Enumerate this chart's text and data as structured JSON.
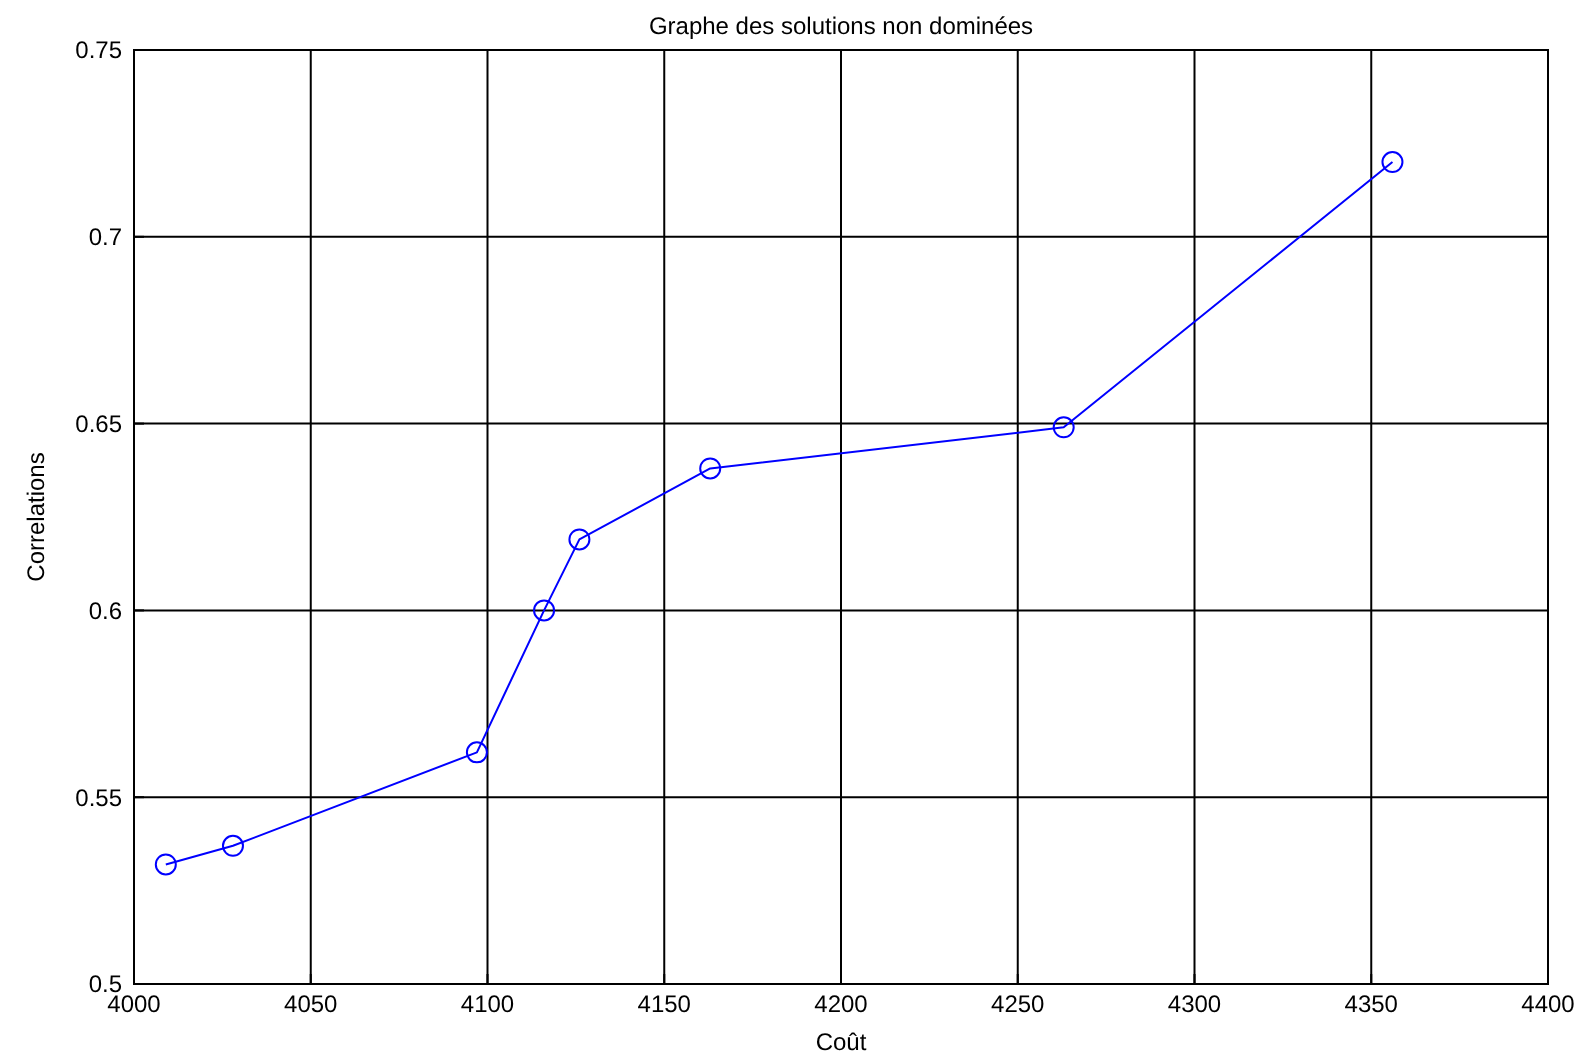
{
  "chart_data": {
    "type": "line",
    "title": "Graphe des solutions non dominées",
    "xlabel": "Coût",
    "ylabel": "Correlations",
    "x": [
      4009,
      4028,
      4097,
      4116,
      4126,
      4163,
      4263,
      4356
    ],
    "series": [
      {
        "color": "#0000ff",
        "values": [
          0.532,
          0.537,
          0.562,
          0.6,
          0.619,
          0.638,
          0.649,
          0.72
        ]
      }
    ],
    "xlim": [
      4000,
      4400
    ],
    "xticks": [
      4000,
      4050,
      4100,
      4150,
      4200,
      4250,
      4300,
      4350,
      4400
    ],
    "ylim": [
      0.5,
      0.75
    ],
    "yticks": [
      0.5,
      0.55,
      0.6,
      0.65,
      0.7,
      0.75
    ],
    "grid": true,
    "marker": "circle",
    "line_style": "solid"
  }
}
